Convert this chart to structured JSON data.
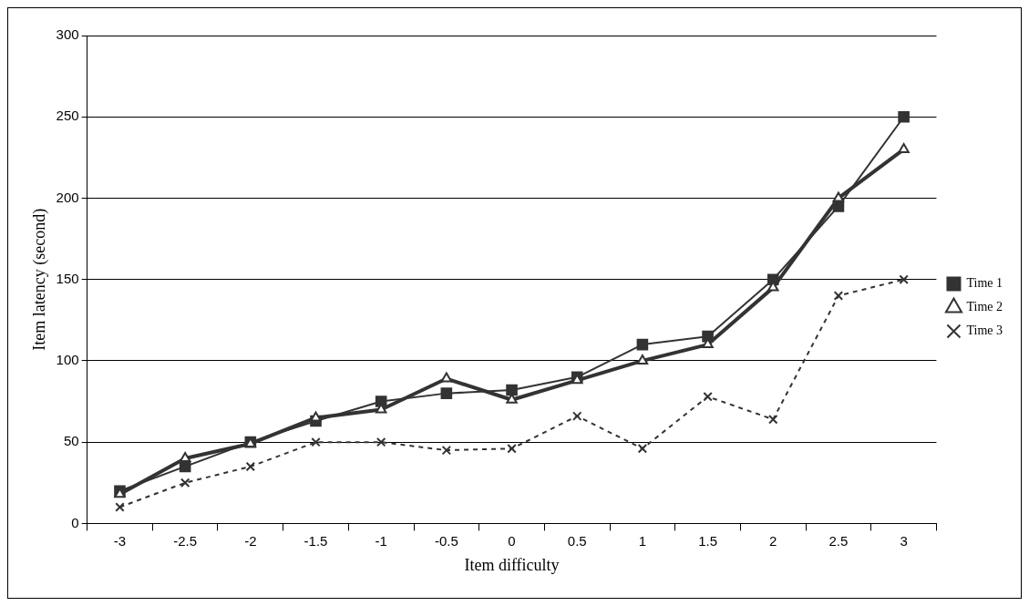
{
  "chart_data": {
    "type": "line",
    "xlabel": "Item difficulty",
    "ylabel": "Item latency (second)",
    "categories": [
      "-3",
      "-2.5",
      "-2",
      "-1.5",
      "-1",
      "-0.5",
      "0",
      "0.5",
      "1",
      "1.5",
      "2",
      "2.5",
      "3"
    ],
    "series": [
      {
        "name": "Time 1",
        "color": "#333333",
        "marker": "square",
        "line_style": "solid",
        "values": [
          20,
          35,
          50,
          63,
          75,
          80,
          82,
          90,
          110,
          115,
          150,
          195,
          250
        ]
      },
      {
        "name": "Time 2",
        "color": "#333333",
        "marker": "triangle",
        "line_style": "solid",
        "values": [
          18,
          40,
          49,
          65,
          70,
          89,
          76,
          88,
          100,
          110,
          145,
          200,
          230
        ]
      },
      {
        "name": "Time 3",
        "color": "#333333",
        "marker": "cross",
        "line_style": "dashed",
        "values": [
          10,
          25,
          35,
          50,
          50,
          45,
          46,
          66,
          46,
          78,
          64,
          140,
          150
        ]
      }
    ],
    "ylim": [
      0,
      300
    ],
    "yticks": [
      0,
      50,
      100,
      150,
      200,
      250,
      300
    ],
    "grid": "y",
    "legend": "right"
  }
}
